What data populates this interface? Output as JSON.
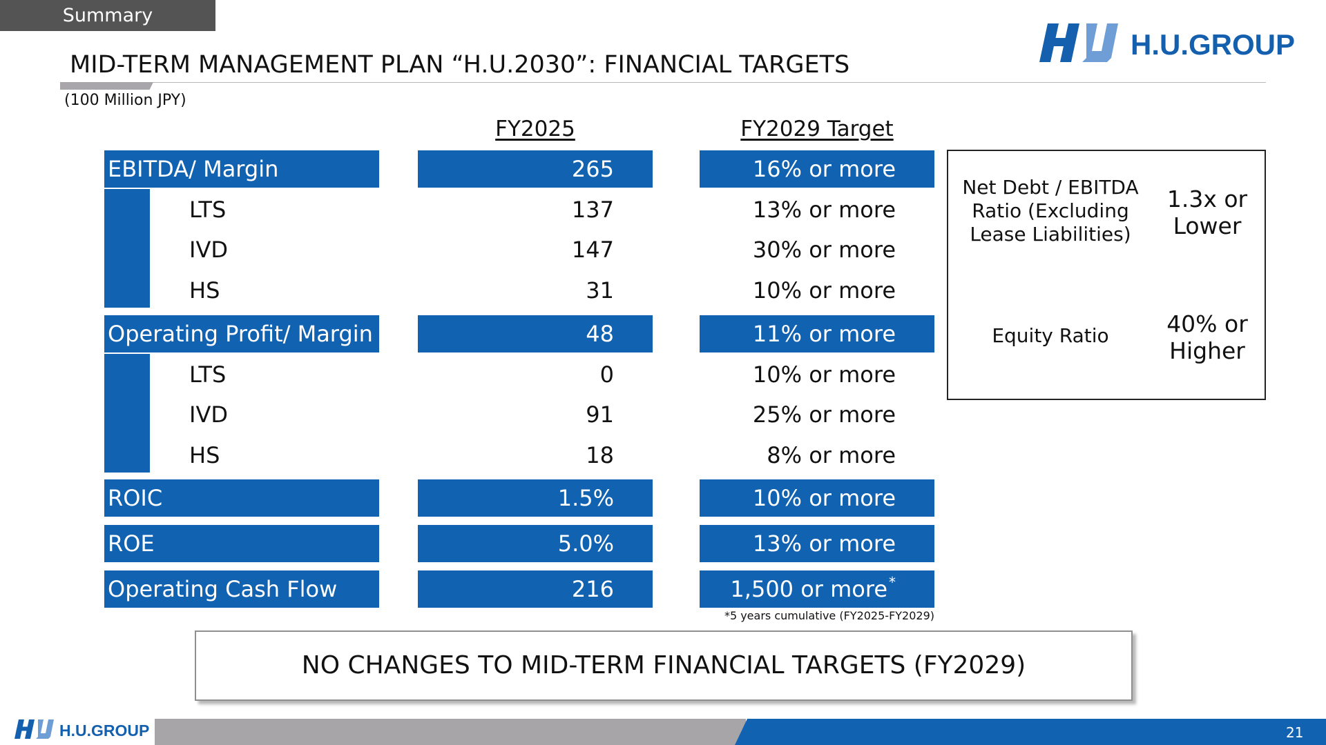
{
  "header": {
    "section_tab": "Summary",
    "title": "MID-TERM MANAGEMENT PLAN “H.U.2030”: FINANCIAL TARGETS",
    "units": "(100 Million JPY)",
    "logo_text": "H.U.GROUP"
  },
  "columns": {
    "fy2025": "FY2025",
    "fy2029": "FY2029 Target"
  },
  "table": {
    "ebitda": {
      "label": "EBITDA/ Margin",
      "fy2025": "265",
      "target": "16% or more"
    },
    "ebitda_segments": [
      {
        "label": "LTS",
        "fy2025": "137",
        "target": "13% or more"
      },
      {
        "label": "IVD",
        "fy2025": "147",
        "target": "30% or more"
      },
      {
        "label": "HS",
        "fy2025": "31",
        "target": "10% or more"
      }
    ],
    "op_profit": {
      "label": "Operating Profit/ Margin",
      "fy2025": "48",
      "target": "11% or more"
    },
    "op_segments": [
      {
        "label": "LTS",
        "fy2025": "0",
        "target": "10% or more"
      },
      {
        "label": "IVD",
        "fy2025": "91",
        "target": "25% or more"
      },
      {
        "label": "HS",
        "fy2025": "18",
        "target": "8% or more"
      }
    ],
    "roic": {
      "label": "ROIC",
      "fy2025": "1.5%",
      "target": "10% or more"
    },
    "roe": {
      "label": "ROE",
      "fy2025": "5.0%",
      "target": "13% or more"
    },
    "ocf": {
      "label": "Operating Cash Flow",
      "fy2025": "216",
      "target": "1,500 or more",
      "target_mark": "*"
    }
  },
  "footnote": "*5 years cumulative (FY2025-FY2029)",
  "kpi_box": {
    "net_debt_label": [
      "Net Debt / EBITDA",
      "Ratio (Excluding",
      "Lease Liabilities)"
    ],
    "net_debt_value": [
      "1.3x or",
      "Lower"
    ],
    "equity_label": "Equity Ratio",
    "equity_value": [
      "40% or",
      "Higher"
    ]
  },
  "banner": "NO CHANGES TO MID-TERM FINANCIAL TARGETS (FY2029)",
  "footer": {
    "logo_text": "H.U.GROUP",
    "page_number": "21"
  },
  "colors": {
    "brand_blue": "#1162b1",
    "logo_blue": "#1560ae",
    "gray": "#a7a5a8",
    "dark_gray": "#545454"
  },
  "icons": {
    "logo_mark": "hu-logo-icon"
  }
}
